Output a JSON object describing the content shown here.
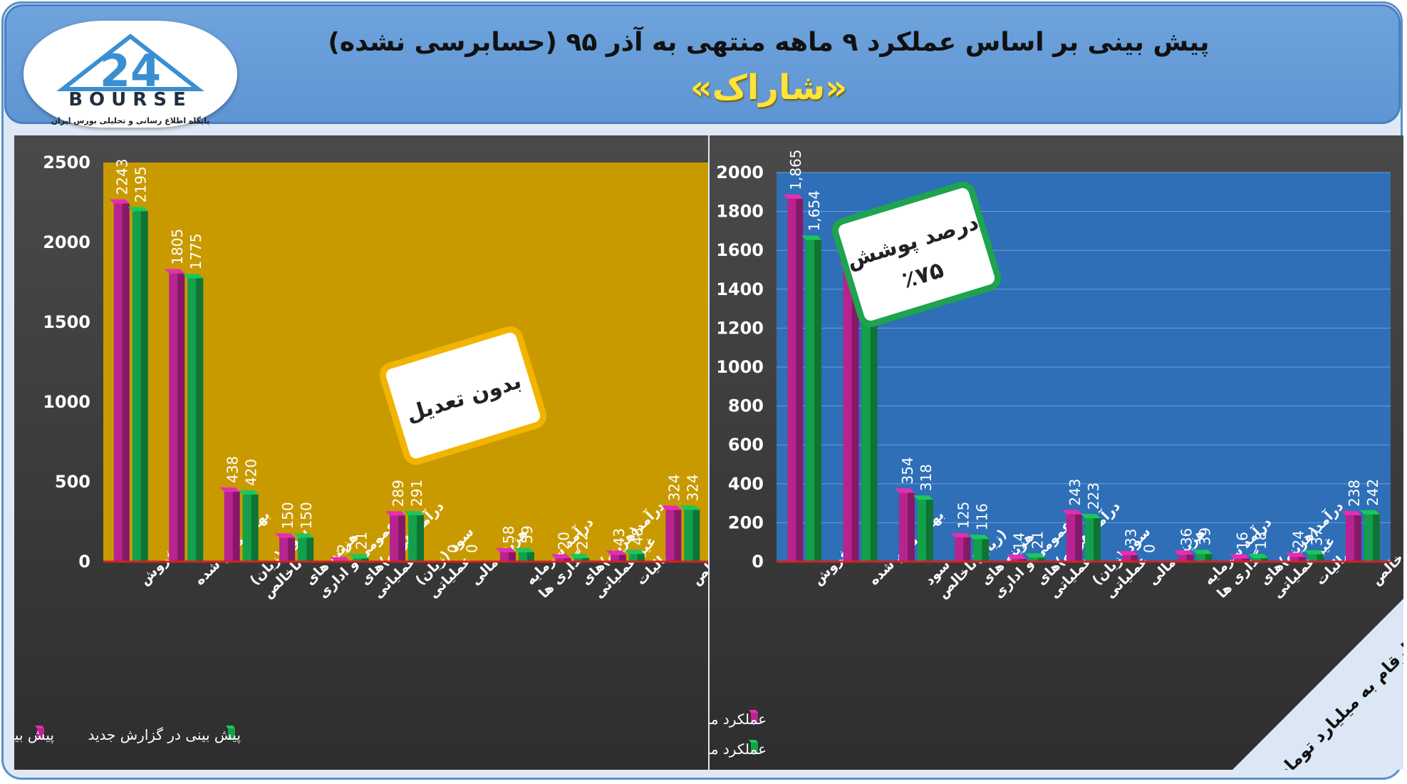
{
  "header": {
    "title": "پیش بینی بر اساس عملکرد ۹ ماهه منتهی به آذر ۹۵ (حسابرسی نشده)",
    "company": "«شاراک»",
    "logo_text": "BOURSE",
    "logo_number": "24",
    "logo_subtitle": "پایگاه اطلاع رسانی و تحلیلی بورس ایران"
  },
  "colors": {
    "series1": "#b8248f",
    "series2": "#14a04a",
    "left_plot_bg": "#c99a00",
    "right_plot_bg": "#2e6fb8",
    "note_left_border": "#f2b400",
    "note_right_border": "#1ea34f"
  },
  "left_chart": {
    "note": "بدون تعدیل"
  },
  "right_chart": {
    "note_line1": "درصد پوشش",
    "note_line2": "٪۷۵",
    "units": "ارقام به میلیارد تومان"
  },
  "chart_data": [
    {
      "type": "bar",
      "categories": [
        "فروش",
        "بهای تمام شده",
        "سود (زیان) ناخالص",
        "هزینه های عمومی و اداری",
        "درآمد(هزینه)های عملیاتی",
        "سود (زیان) عملیاتی",
        "هزینه مالی",
        "درآمد سرمایه گذاری ها",
        "درآمد(هزینه)های غیر عملیاتی",
        "مالیات",
        "سود خالص"
      ],
      "series": [
        {
          "name": "پیش بینی در گزارش قبلی",
          "values": [
            2243,
            1805,
            438,
            150,
            2,
            289,
            0,
            58,
            20,
            43,
            324
          ],
          "labels": [
            "2243",
            "1805",
            "438",
            "150",
            "2",
            "289",
            "0",
            "58",
            "20",
            "43",
            "324"
          ]
        },
        {
          "name": "پیش بینی در گزارش جدید",
          "values": [
            2195,
            1775,
            420,
            150,
            21,
            291,
            0,
            59,
            22,
            48,
            324
          ],
          "labels": [
            "2195",
            "1775",
            "420",
            "150",
            "21",
            "291",
            "0",
            "59",
            "22",
            "48",
            "324"
          ]
        }
      ],
      "yticks": [
        "0",
        "500",
        "1000",
        "1500",
        "2000",
        "2500"
      ],
      "ylim": [
        0,
        2500
      ],
      "legend_position": "bottom"
    },
    {
      "type": "bar",
      "categories": [
        "فروش",
        "بهای تمام شده",
        "سود (زیان)ناخالص",
        "هزینه های عمومی و اداری",
        "درآمد(هزینه)های عملیاتی",
        "سود (زیان) عملیاتی",
        "هزینه مالی",
        "درآمد سرمایه گذاری ها",
        "درآمد(هزینه)های غیر عملیاتی",
        "مالیات",
        "سود خالص"
      ],
      "series": [
        {
          "name": "عملکرد منتهی به ۹۴/۰۹/۳۰",
          "values": [
            1865,
            1512,
            354,
            125,
            14,
            243,
            33,
            36,
            16,
            24,
            238
          ],
          "labels": [
            "1,865",
            "1,512",
            "354",
            "125",
            "14",
            "243",
            "33",
            "36",
            "16",
            "24",
            "238"
          ]
        },
        {
          "name": "عملکرد منتهی به ۹۵/۰۹/۳۰",
          "values": [
            1654,
            1336,
            318,
            116,
            21,
            223,
            0,
            39,
            18,
            37,
            242
          ],
          "labels": [
            "1,654",
            "1,336",
            "318",
            "116",
            "21",
            "223",
            "0",
            "39",
            "18",
            "37",
            "242"
          ]
        }
      ],
      "yticks": [
        "0",
        "200",
        "400",
        "600",
        "800",
        "1000",
        "1200",
        "1400",
        "1600",
        "1800",
        "2000"
      ],
      "ylim": [
        0,
        2000
      ],
      "legend_position": "bottom-left"
    }
  ]
}
